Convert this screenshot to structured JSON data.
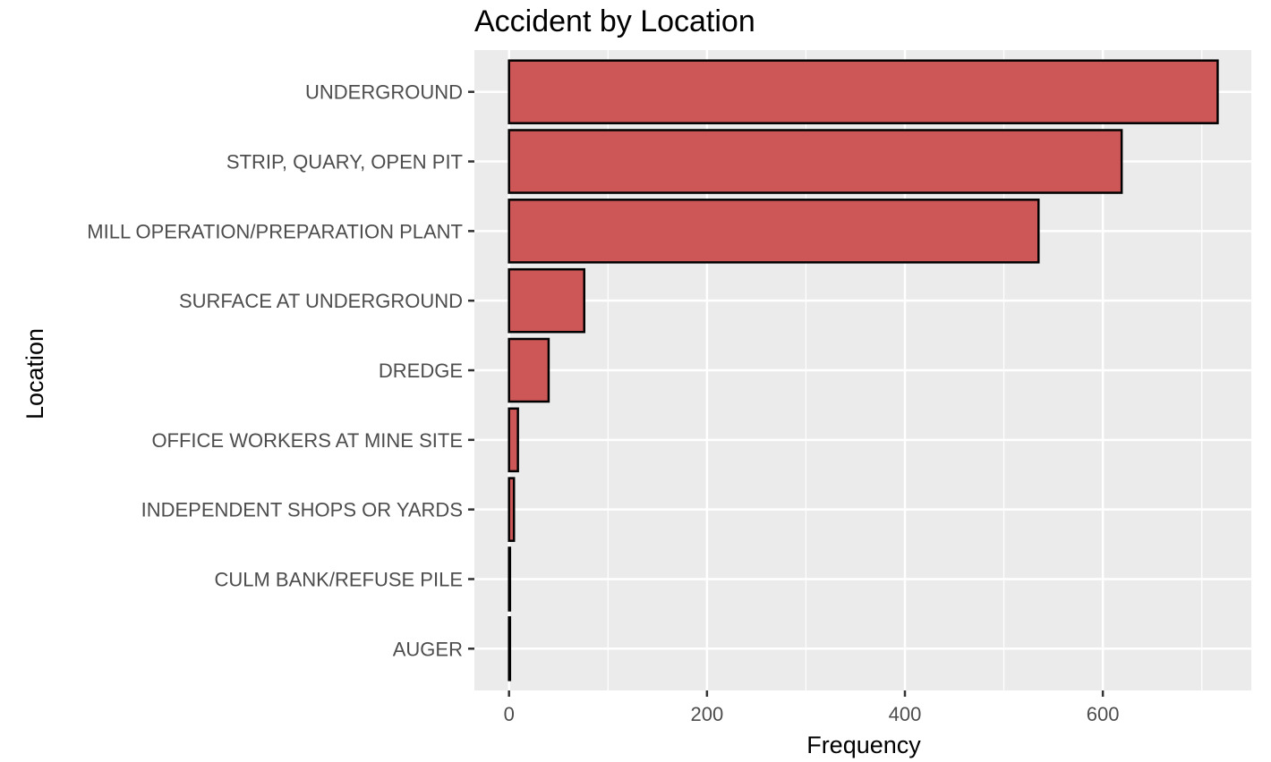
{
  "chart_data": {
    "type": "bar",
    "orientation": "horizontal",
    "title": "Accident by Location",
    "xlabel": "Frequency",
    "ylabel": "Location",
    "categories": [
      "UNDERGROUND",
      "STRIP, QUARY, OPEN PIT",
      "MILL OPERATION/PREPARATION PLANT",
      "SURFACE AT UNDERGROUND",
      "DREDGE",
      "OFFICE WORKERS AT MINE SITE",
      "INDEPENDENT SHOPS OR YARDS",
      "CULM BANK/REFUSE PILE",
      "AUGER"
    ],
    "values": [
      716,
      619,
      535,
      76,
      40,
      9,
      5,
      1,
      1
    ],
    "xlim": [
      -35,
      750
    ],
    "xticks": [
      0,
      200,
      400,
      600
    ],
    "xtick_labels": [
      "0",
      "200",
      "400",
      "600"
    ],
    "grid": true,
    "colors": {
      "bar_fill": "#cd5757",
      "bar_stroke": "#000000",
      "panel_bg": "#ebebeb",
      "grid": "#ffffff"
    }
  }
}
